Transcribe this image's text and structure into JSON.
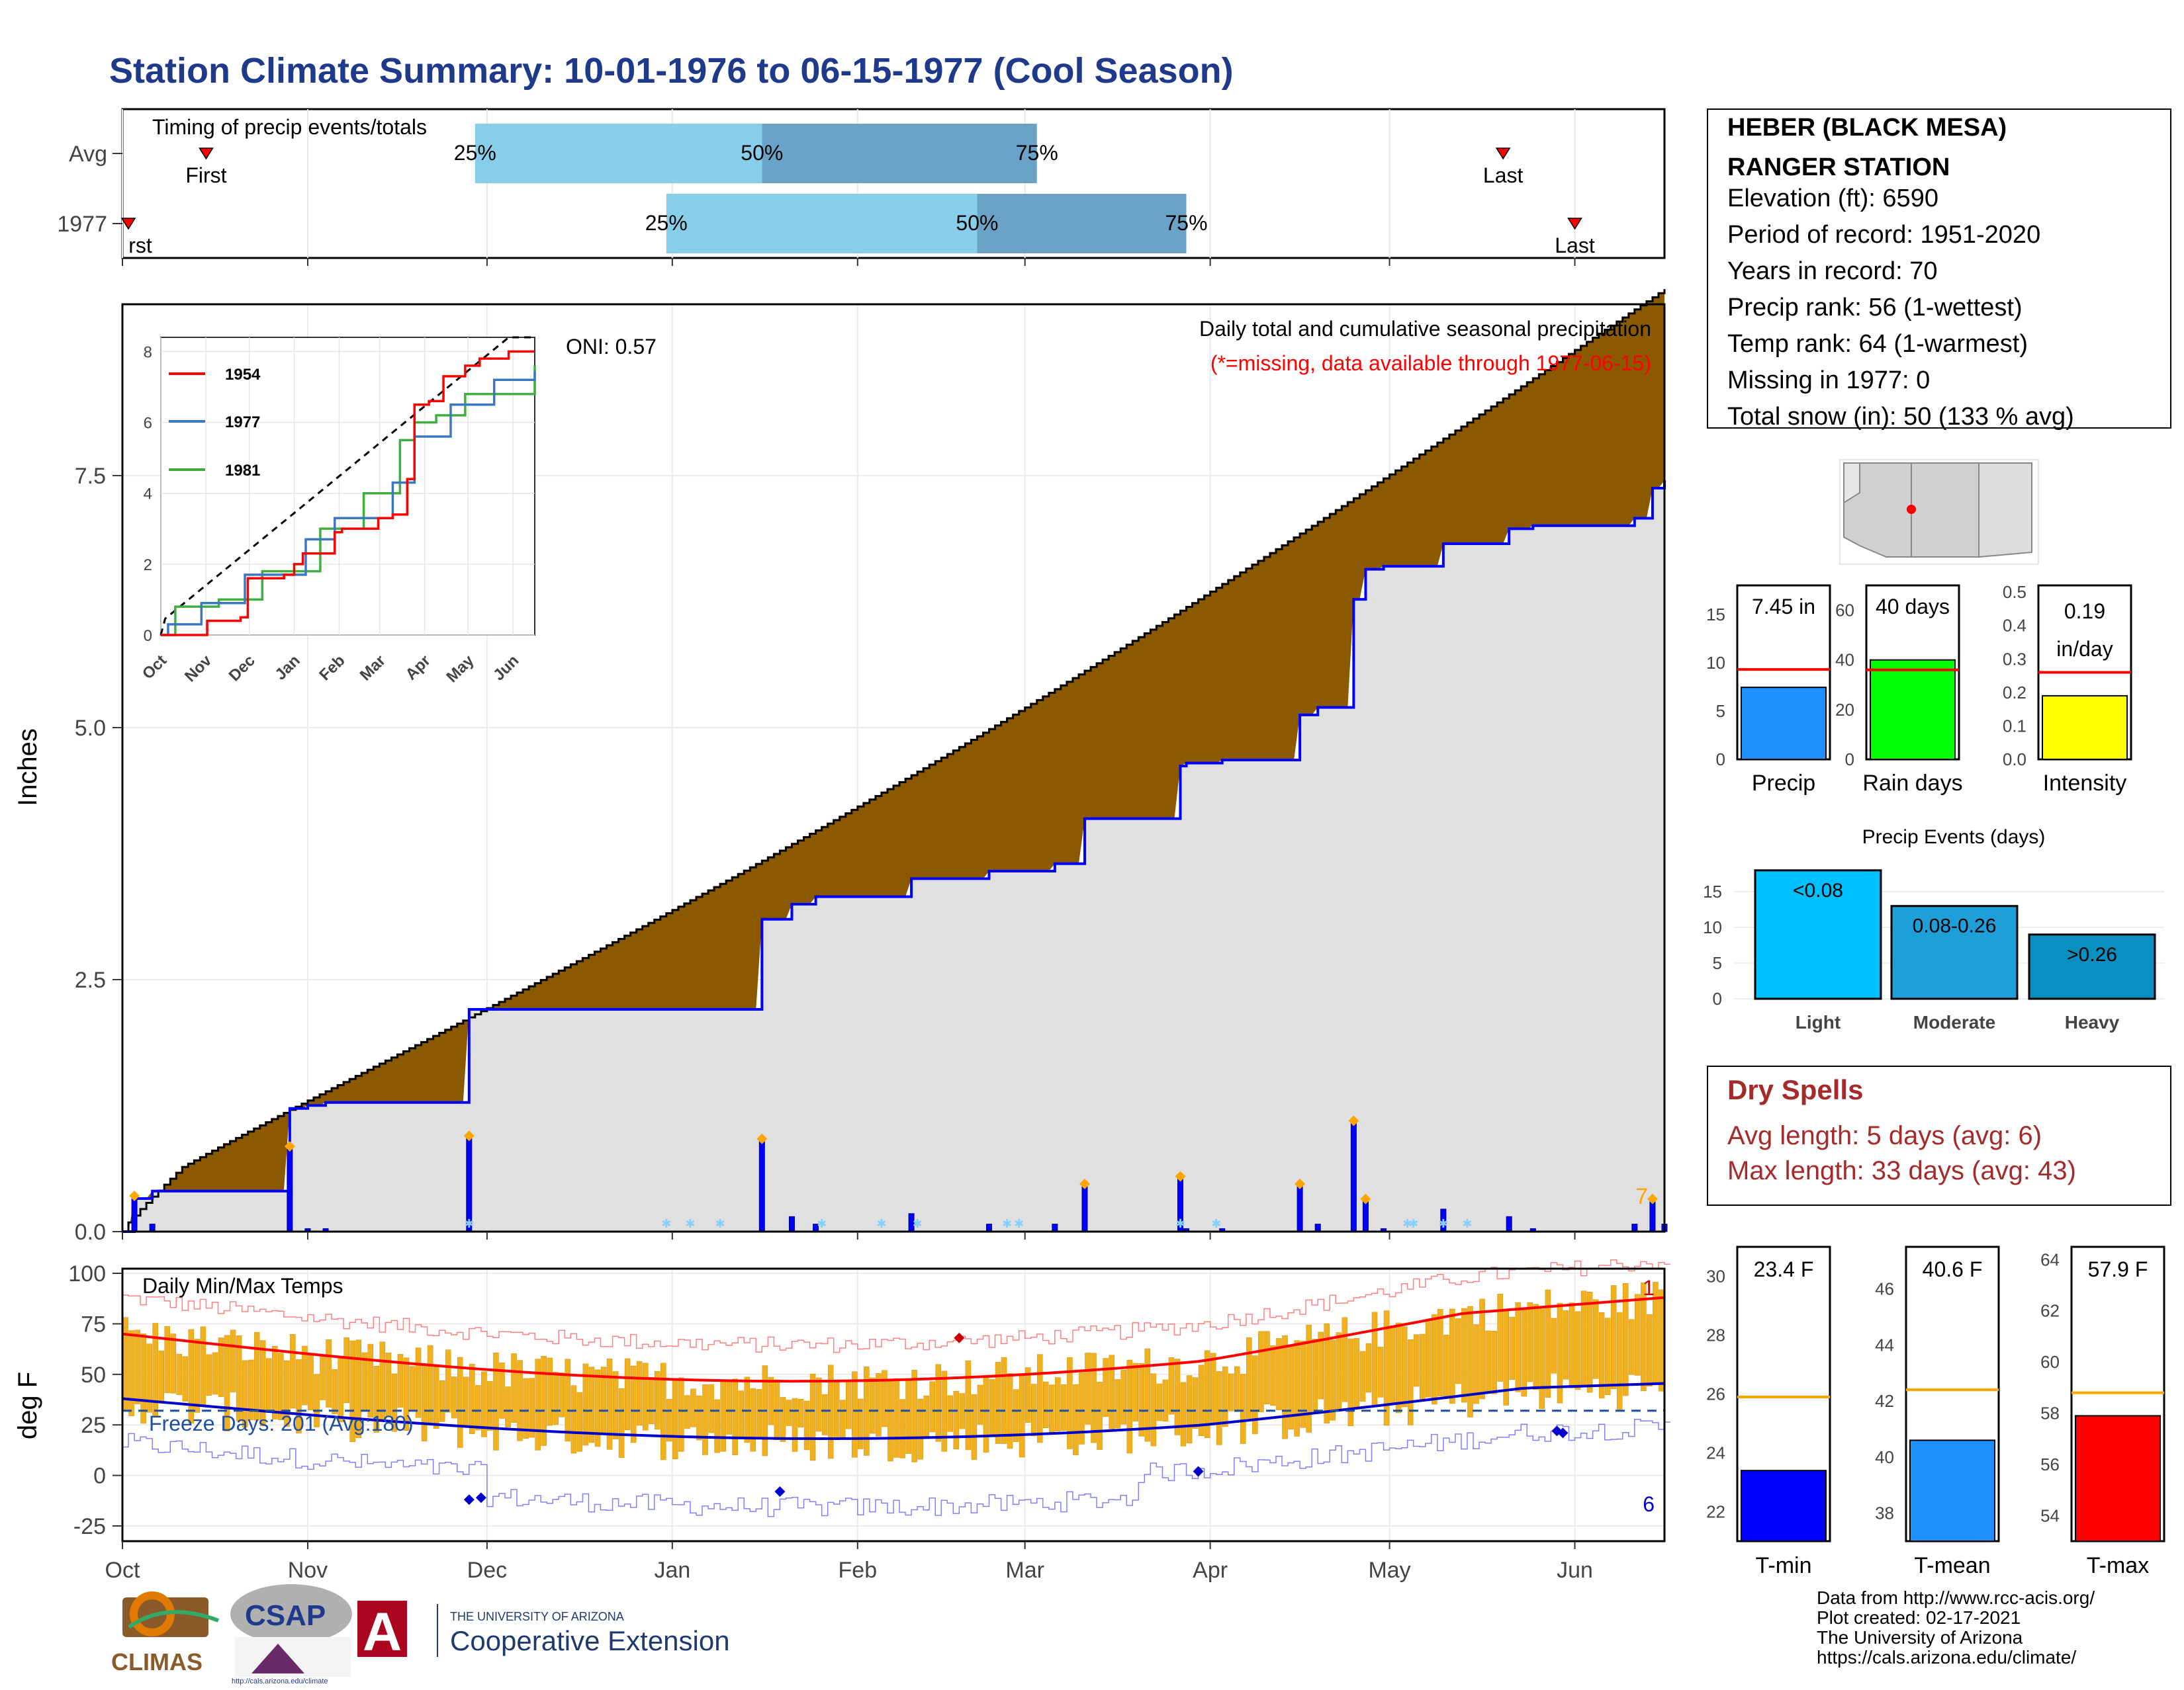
{
  "title": "Station Climate Summary: 10-01-1976 to 06-15-1977 (Cool Season)",
  "timing": {
    "label": "Timing of precip events/totals",
    "rows": [
      {
        "name": "Avg",
        "first": "First",
        "last": "Last",
        "p25": "25%",
        "p50": "50%",
        "p75": "75%",
        "first_doy": 14,
        "last_doy": 231,
        "q25": 59,
        "q50": 107,
        "q75": 153
      },
      {
        "name": "1977",
        "first": "rst",
        "last": "Last",
        "p25": "25%",
        "p50": "50%",
        "p75": "75%",
        "first_doy": 1,
        "last_doy": 243,
        "q25": 91,
        "q50": 143,
        "q75": 178
      }
    ]
  },
  "station": {
    "name_line1": "HEBER (BLACK MESA)",
    "name_line2": "RANGER STATION",
    "lines": [
      "Elevation (ft): 6590",
      "Period of record: 1951-2020",
      "Years in record: 70",
      "Precip rank: 56 (1-wettest)",
      "Temp rank: 64 (1-warmest)",
      "Missing in 1977: 0",
      "Total snow (in): 50 (133 % avg)"
    ]
  },
  "main_chart": {
    "ylabel": "Inches",
    "legend_title": "Daily total and cumulative seasonal precipitation",
    "missing_note": "(*=missing, data available through 1977-06-15)",
    "oni": "ONI: 0.57",
    "count": "7",
    "yticks": [
      "0.0",
      "2.5",
      "5.0",
      "7.5"
    ],
    "months": [
      "Oct",
      "Nov",
      "Dec",
      "Jan",
      "Feb",
      "Mar",
      "Apr",
      "May",
      "Jun"
    ]
  },
  "inset": {
    "series": [
      {
        "name": "1954",
        "color": "#ff0000"
      },
      {
        "name": "1977",
        "color": "#3a78c4"
      },
      {
        "name": "1981",
        "color": "#3fae3f"
      }
    ],
    "yticks": [
      "0",
      "2",
      "4",
      "6",
      "8"
    ],
    "months": [
      "Oct",
      "Nov",
      "Dec",
      "Jan",
      "Feb",
      "Mar",
      "Apr",
      "May",
      "Jun"
    ]
  },
  "temp_chart": {
    "ylabel": "deg F",
    "title": "Daily Min/Max Temps",
    "freeze": "Freeze Days: 201 (Avg:180)",
    "count_max": "1",
    "count_min": "6",
    "yticks": [
      "100",
      "75",
      "50",
      "25",
      "0",
      "-25"
    ],
    "months": [
      "Oct",
      "Nov",
      "Dec",
      "Jan",
      "Feb",
      "Mar",
      "Apr",
      "May",
      "Jun"
    ]
  },
  "bars_precip": [
    {
      "label": "Precip",
      "value_text": "7.45 in",
      "value": 7.45,
      "avg": 9.3,
      "ymax": 18,
      "ticks": [
        "0",
        "5",
        "10",
        "15"
      ],
      "color": "#1e90ff"
    },
    {
      "label": "Rain days",
      "value_text": "40 days",
      "value": 40,
      "avg": 36,
      "ymax": 70,
      "ticks": [
        "0",
        "20",
        "40",
        "60"
      ],
      "color": "#00ff00"
    },
    {
      "label": "Intensity",
      "value_text_1": "0.19",
      "value_text_2": "in/day",
      "value": 0.19,
      "avg": 0.26,
      "ymax": 0.52,
      "ticks": [
        "0.0",
        "0.1",
        "0.2",
        "0.3",
        "0.4",
        "0.5"
      ],
      "color": "#ffff00"
    }
  ],
  "events": {
    "title": "Precip Events (days)",
    "ticks": [
      "0",
      "5",
      "10",
      "15"
    ],
    "bars": [
      {
        "label": "Light",
        "inner": "<0.08",
        "value": 18,
        "color": "#00bfff"
      },
      {
        "label": "Moderate",
        "inner": "0.08-0.26",
        "value": 13,
        "color": "#1e9fd8"
      },
      {
        "label": "Heavy",
        "inner": ">0.26",
        "value": 9,
        "color": "#0a8fc0"
      }
    ]
  },
  "dry_spells": {
    "title": "Dry Spells",
    "avg_line": "Avg length: 5 days (avg: 6)",
    "max_line": "Max length: 33 days (avg: 43)"
  },
  "temp_bars": [
    {
      "label": "T-min",
      "value_text": "23.4 F",
      "value": 23.4,
      "avg": 25.9,
      "ymin": 21,
      "ymax": 31,
      "ticks": [
        "22",
        "24",
        "26",
        "28",
        "30"
      ],
      "color": "#0000ff"
    },
    {
      "label": "T-mean",
      "value_text": "40.6 F",
      "value": 40.6,
      "avg": 42.4,
      "ymin": 37,
      "ymax": 47.5,
      "ticks": [
        "38",
        "40",
        "42",
        "44",
        "46"
      ],
      "color": "#1e90ff"
    },
    {
      "label": "T-max",
      "value_text": "57.9 F",
      "value": 57.9,
      "avg": 58.8,
      "ymin": 53,
      "ymax": 64.5,
      "ticks": [
        "54",
        "56",
        "58",
        "60",
        "62",
        "64"
      ],
      "color": "#ff0000"
    }
  ],
  "footer": {
    "lines": [
      "Data from http://www.rcc-acis.org/",
      "Plot created: 02-17-2021",
      "The University of Arizona",
      "https://cals.arizona.edu/climate/"
    ],
    "logo1": "CLIMAS",
    "logo2": "CSAP",
    "logo2_url": "http://cals.arizona.edu/climate",
    "logo3_a": "THE UNIVERSITY OF ARIZONA",
    "logo3_b": "Cooperative Extension"
  }
}
